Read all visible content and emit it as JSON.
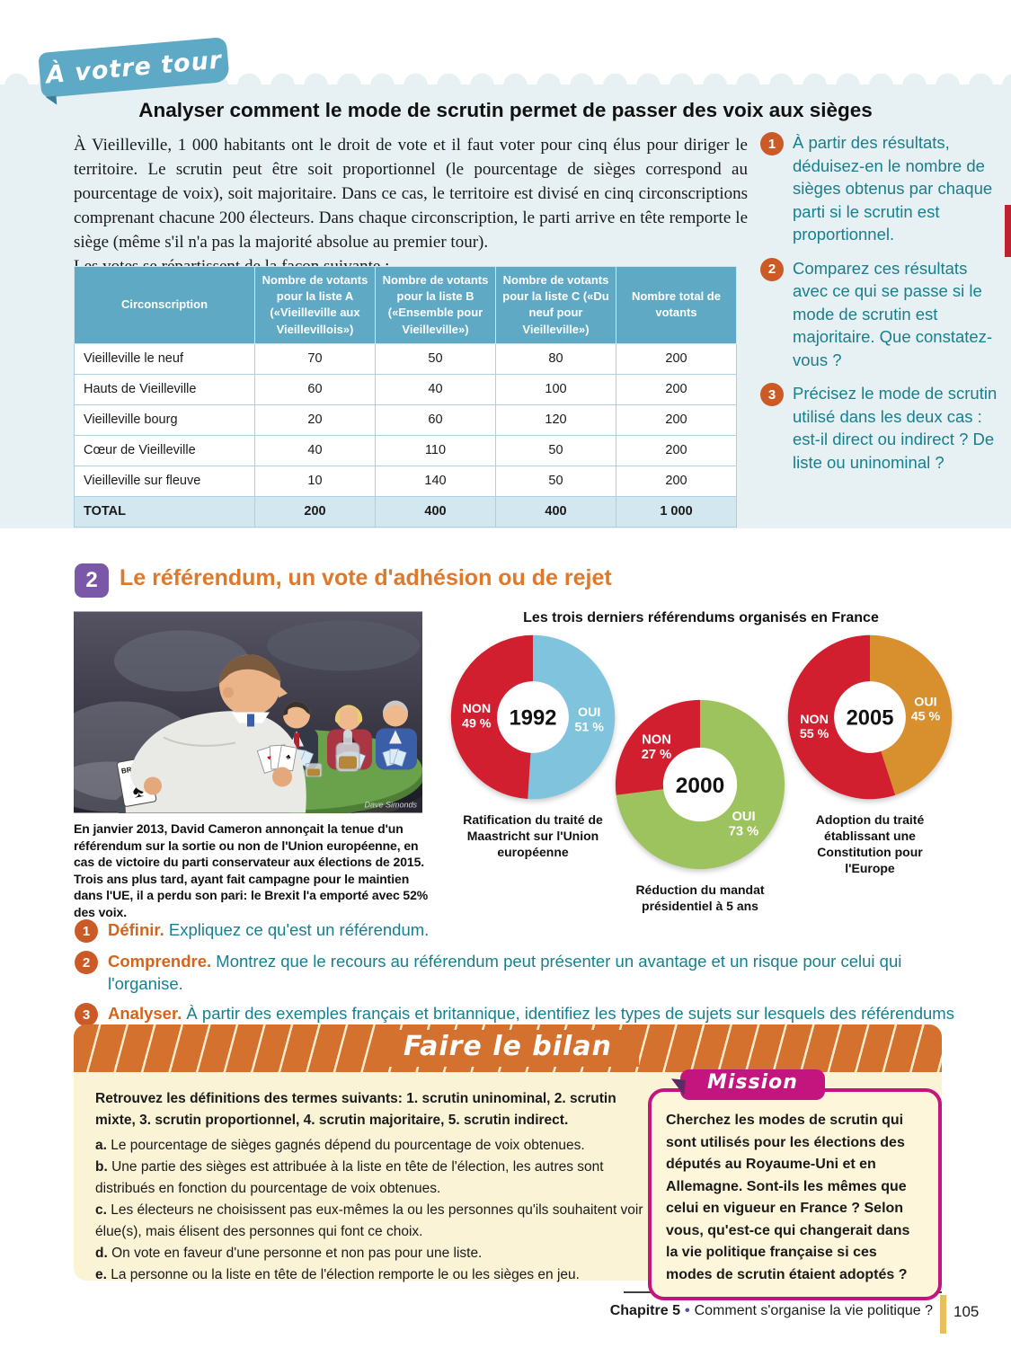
{
  "ribbon": "À votre tour",
  "activity1": {
    "title": "Analyser comment le mode de scrutin permet de passer des voix aux sièges",
    "intro": "À Vieilleville, 1 000 habitants ont le droit de vote et il faut voter pour cinq élus pour diriger le territoire. Le scrutin peut être soit proportionnel (le pourcentage de sièges correspond au pourcentage de voix), soit majoritaire. Dans ce cas, le territoire est divisé en cinq circonscriptions comprenant chacune 200 électeurs. Dans chaque circonscription, le parti arrive en tête remporte le siège (même s'il n'a pas la majorité absolue au premier tour).",
    "intro2": "Les votes se répartissent de la façon suivante :",
    "table": {
      "headers": [
        "Circonscription",
        "Nombre de votants pour la liste A («Vieilleville aux Vieillevillois»)",
        "Nombre de votants pour la liste B («Ensemble pour Vieilleville»)",
        "Nombre de votants pour la liste C («Du neuf pour Vieilleville»)",
        "Nombre total de votants"
      ],
      "rows": [
        [
          "Vieilleville le neuf",
          "70",
          "50",
          "80",
          "200"
        ],
        [
          "Hauts de Vieilleville",
          "60",
          "40",
          "100",
          "200"
        ],
        [
          "Vieilleville bourg",
          "20",
          "60",
          "120",
          "200"
        ],
        [
          "Cœur de Vieilleville",
          "40",
          "110",
          "50",
          "200"
        ],
        [
          "Vieilleville sur fleuve",
          "10",
          "140",
          "50",
          "200"
        ]
      ],
      "total": [
        "TOTAL",
        "200",
        "400",
        "400",
        "1 000"
      ]
    },
    "questions": [
      {
        "num": "1",
        "text": "À partir des résultats, déduisez-en le nombre de sièges obtenus par chaque parti si le scrutin est proportionnel."
      },
      {
        "num": "2",
        "text": "Comparez ces résultats avec ce qui se passe si le mode de scrutin est majoritaire. Que constatez-vous ?"
      },
      {
        "num": "3",
        "text": "Précisez le mode de scrutin utilisé dans les deux cas : est-il direct ou indirect ? De liste ou uninominal ?"
      }
    ]
  },
  "activity2": {
    "number": "2",
    "title": "Le référendum, un vote d'adhésion ou de rejet",
    "cartoon": {
      "brexit_card": "BREXIT",
      "spade_icon": "♠",
      "signature": "Dave Simonds",
      "caption": "En janvier 2013, David Cameron annonçait la tenue d'un référendum sur la sortie ou non de l'Union européenne, en cas de victoire du parti conservateur aux élections de 2015. Trois ans plus tard, ayant fait campagne pour le maintien dans l'UE, il a perdu son pari: le Brexit l'a emporté avec 52% des voix."
    },
    "questions": [
      {
        "num": "1",
        "verb": "Définir.",
        "text": "Expliquez ce qu'est un référendum."
      },
      {
        "num": "2",
        "verb": "Comprendre.",
        "text": "Montrez que le recours au référendum peut présenter un avantage et un risque pour celui qui l'organise."
      },
      {
        "num": "3",
        "verb": "Analyser.",
        "text": "À partir des exemples français et britannique, identifiez les types de sujets sur lesquels des référendums sont organisés."
      }
    ]
  },
  "chart_data": {
    "type": "pie",
    "title": "Les trois derniers référendums organisés en France",
    "legend_position": "inside",
    "charts": [
      {
        "year": "1992",
        "slices": [
          {
            "label": "OUI",
            "value": 51,
            "color": "#7fc3dc"
          },
          {
            "label": "NON",
            "value": 49,
            "color": "#d11f2f"
          }
        ],
        "caption": "Ratification du traité de Maastricht sur l'Union européenne"
      },
      {
        "year": "2000",
        "slices": [
          {
            "label": "OUI",
            "value": 73,
            "color": "#9dc35e"
          },
          {
            "label": "NON",
            "value": 27,
            "color": "#d11f2f"
          }
        ],
        "caption": "Réduction du mandat présidentiel à 5 ans"
      },
      {
        "year": "2005",
        "slices": [
          {
            "label": "OUI",
            "value": 45,
            "color": "#d8902e"
          },
          {
            "label": "NON",
            "value": 55,
            "color": "#d11f2f"
          }
        ],
        "caption": "Adoption du traité établissant une Constitution pour l'Europe"
      }
    ]
  },
  "bilan": {
    "banner": "Faire le bilan",
    "intro": "Retrouvez les définitions des termes suivants: 1. scrutin uninominal, 2. scrutin mixte, 3. scrutin proportionnel, 4. scrutin majoritaire, 5. scrutin indirect.",
    "items": [
      {
        "letter": "a.",
        "text": "Le pourcentage de sièges gagnés dépend du pourcentage de voix obtenues."
      },
      {
        "letter": "b.",
        "text": "Une partie des sièges est attribuée à la liste en tête de l'élection, les autres sont distribués en fonction du pourcentage de voix obtenues."
      },
      {
        "letter": "c.",
        "text": "Les électeurs ne choisissent pas eux-mêmes la ou les personnes qu'ils souhaitent voir élue(s), mais élisent des personnes qui font ce choix."
      },
      {
        "letter": "d.",
        "text": "On vote en faveur d'une personne et non pas pour une liste."
      },
      {
        "letter": "e.",
        "text": "La personne ou la liste en tête de l'élection remporte le ou les sièges en jeu."
      }
    ],
    "mission": {
      "label": "Mission",
      "text": "Cherchez les modes de scrutin qui sont utilisés pour les élections des députés au Royaume-Uni et en Allemagne. Sont-ils les mêmes que celui en vigueur en France ? Selon vous, qu'est-ce qui changerait dans la vie politique française si ces modes de scrutin étaient adoptés ?"
    }
  },
  "footer": {
    "chapter": "Chapitre 5",
    "bullet": "•",
    "chapter_title": "Comment s'organise la vie politique ?",
    "page": "105"
  },
  "colors": {
    "panel_blue": "#e7f0f2",
    "table_header": "#5fa9c5",
    "teal_text": "#177f8e",
    "orange_accent": "#cb5a27",
    "section_orange": "#e0782a",
    "purple_badge": "#7b57a8",
    "banner_orange": "#d4712e",
    "cream_panel": "#fbf3d6",
    "mission_magenta": "#c4147d",
    "pie_red": "#d11f2f",
    "pie_blue": "#7fc3dc",
    "pie_green": "#9dc35e",
    "pie_orange": "#d8902e"
  }
}
